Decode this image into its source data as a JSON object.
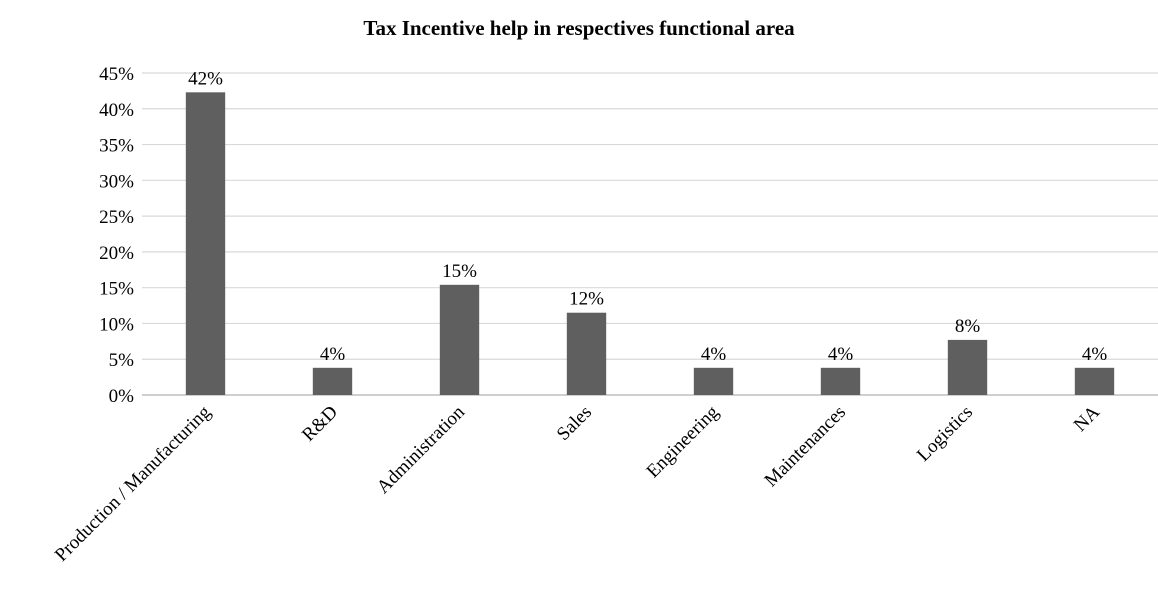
{
  "chart_data": {
    "type": "bar",
    "title": "Tax Incentive help in respectives functional area",
    "xlabel": "",
    "ylabel": "",
    "categories": [
      "Production / Manufacturing",
      "R&D",
      "Administration",
      "Sales",
      "Engineering",
      "Maintenances",
      "Logistics",
      "NA"
    ],
    "values": [
      0.423,
      0.038,
      0.154,
      0.115,
      0.038,
      0.038,
      0.077,
      0.038
    ],
    "data_labels": [
      "42%",
      "4%",
      "15%",
      "12%",
      "4%",
      "4%",
      "8%",
      "4%"
    ],
    "ylim": [
      0,
      0.45
    ],
    "y_ticks": [
      0,
      0.05,
      0.1,
      0.15,
      0.2,
      0.25,
      0.3,
      0.35,
      0.4,
      0.45
    ],
    "y_tick_labels": [
      "0%",
      "5%",
      "10%",
      "15%",
      "20%",
      "25%",
      "30%",
      "35%",
      "40%",
      "45%"
    ],
    "grid": true,
    "legend": "none",
    "colors": {
      "bar": "#5f5f5f",
      "grid": "#d9d9d9",
      "axis": "#bfbfbf",
      "text": "#000000"
    }
  }
}
